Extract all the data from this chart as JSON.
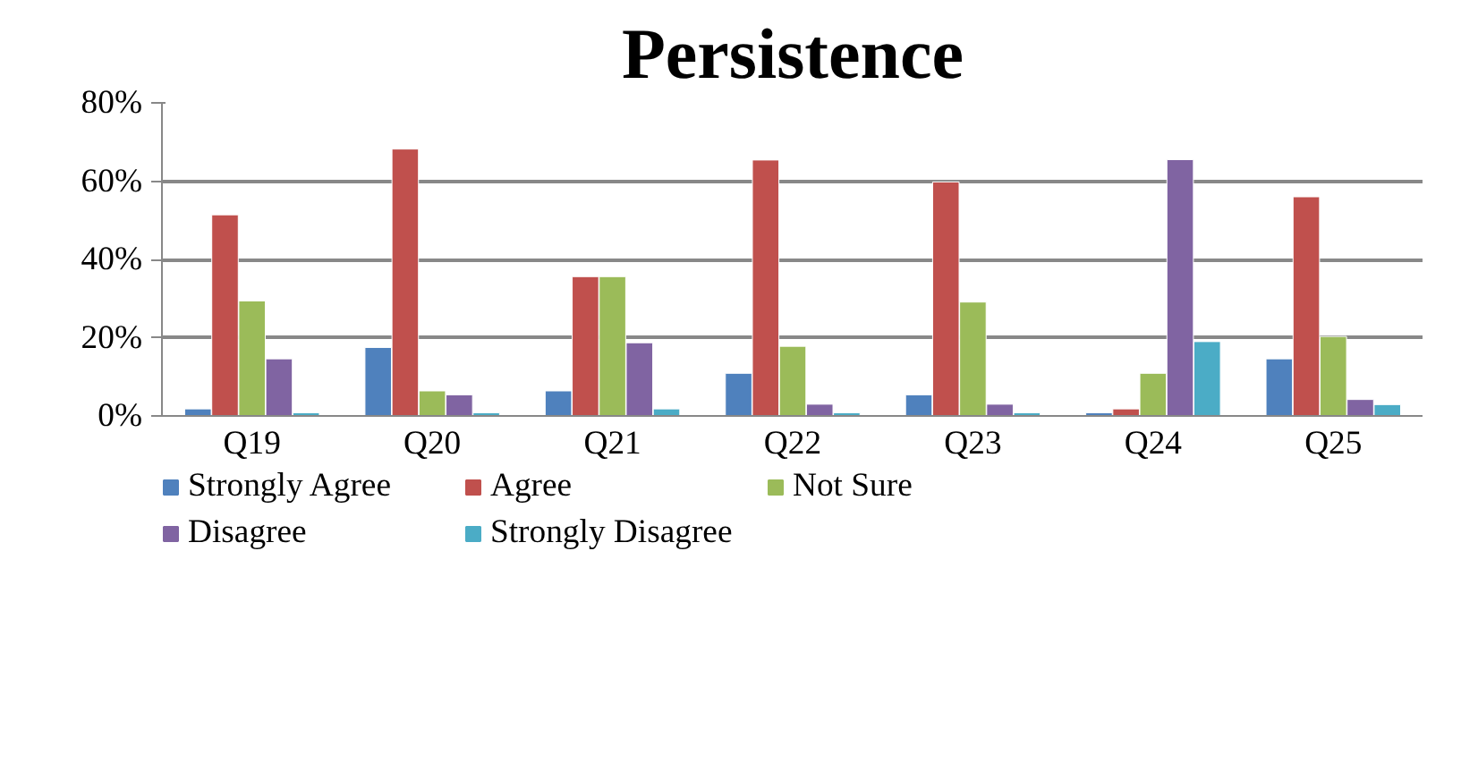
{
  "chart_data": {
    "type": "bar",
    "title": "Persistence",
    "categories": [
      "Q19",
      "Q20",
      "Q21",
      "Q22",
      "Q23",
      "Q24",
      "Q25"
    ],
    "series": [
      {
        "name": "Strongly Agree",
        "color": "#4f81bd",
        "values": [
          1.8,
          17.5,
          6.4,
          10.9,
          5.4,
          0.8,
          14.6
        ]
      },
      {
        "name": "Agree",
        "color": "#c0504d",
        "values": [
          51.4,
          68.2,
          35.6,
          65.4,
          59.8,
          1.8,
          56
        ]
      },
      {
        "name": "Not Sure",
        "color": "#9bbb59",
        "values": [
          29.4,
          6.4,
          35.6,
          17.8,
          29.1,
          10.9,
          20.3
        ]
      },
      {
        "name": "Disagree",
        "color": "#8064a2",
        "values": [
          14.6,
          5.4,
          18.7,
          3,
          3,
          65.5,
          4.2
        ]
      },
      {
        "name": "Strongly Disagree",
        "color": "#4bacc6",
        "values": [
          0.8,
          0.8,
          1.8,
          0.8,
          0.8,
          19,
          2.9
        ]
      }
    ],
    "ylim": [
      0,
      80
    ],
    "yticks": [
      {
        "value": 0,
        "label": "0%"
      },
      {
        "value": 20,
        "label": "20%"
      },
      {
        "value": 40,
        "label": "40%"
      },
      {
        "value": 60,
        "label": "60%"
      },
      {
        "value": 80,
        "label": "80%"
      }
    ],
    "grid": "y",
    "legend": "bottom"
  }
}
